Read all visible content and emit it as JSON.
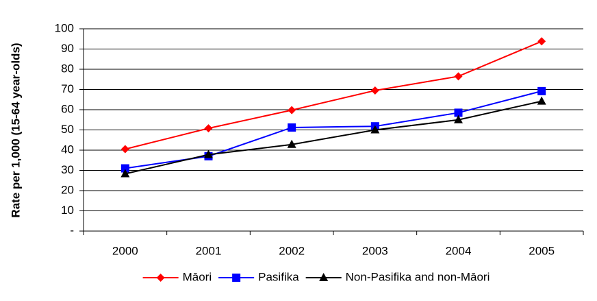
{
  "chart_data": {
    "type": "line",
    "y_label": "Rate per 1,000 (15-64 year-olds)",
    "categories": [
      "2000",
      "2001",
      "2002",
      "2003",
      "2004",
      "2005"
    ],
    "series": [
      {
        "name": "Māori",
        "color": "#ff0000",
        "marker": "diamond",
        "values": [
          40.5,
          50.8,
          59.8,
          69.5,
          76.5,
          93.8
        ]
      },
      {
        "name": "Pasifika",
        "color": "#0000ff",
        "marker": "square",
        "values": [
          31,
          37,
          51.2,
          51.8,
          58.5,
          69.2
        ]
      },
      {
        "name": "Non-Pasifika and non-Māori",
        "color": "#000000",
        "marker": "triangle",
        "values": [
          28.3,
          37.8,
          42.8,
          50,
          55,
          64.2
        ]
      }
    ],
    "ylim": [
      0,
      100
    ],
    "yticks": [
      {
        "value": 0,
        "label": "-"
      },
      10,
      20,
      30,
      40,
      50,
      60,
      70,
      80,
      90,
      100
    ],
    "grid": true,
    "legend": "bottom"
  }
}
